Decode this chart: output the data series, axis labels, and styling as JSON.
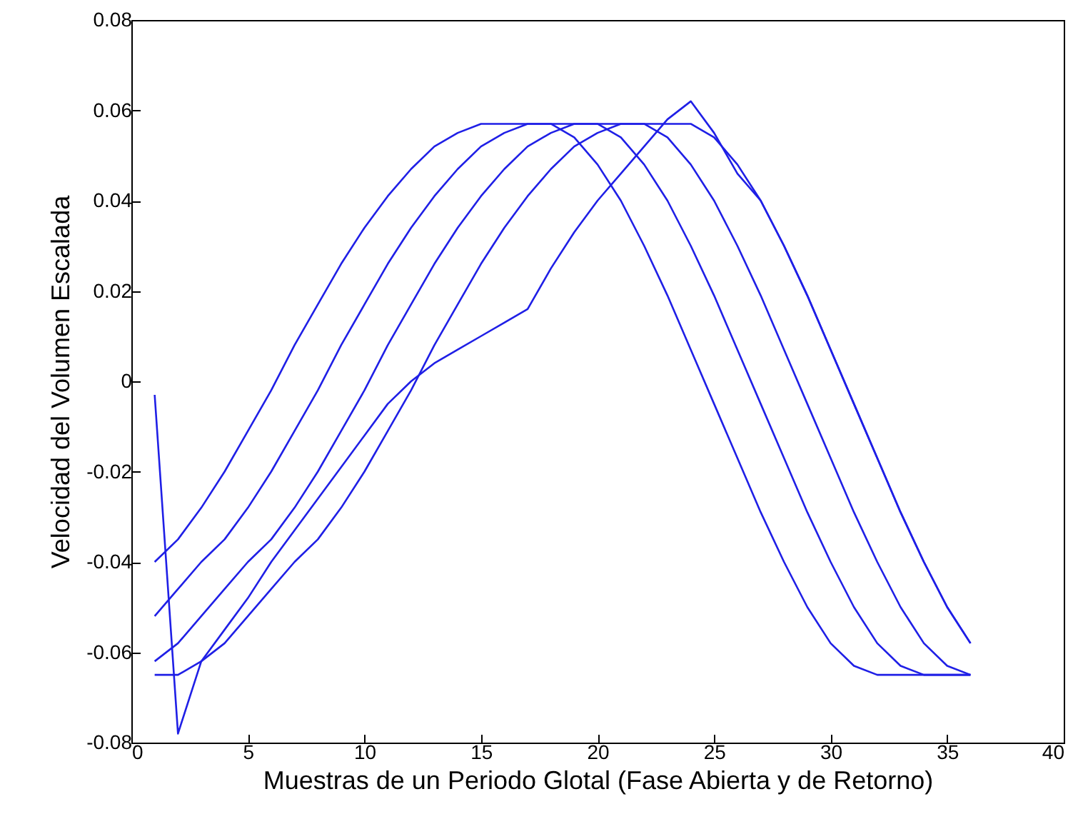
{
  "chart_data": {
    "type": "line",
    "xlabel": "Muestras de un Periodo Glotal (Fase Abierta y de Retorno)",
    "ylabel": "Velocidad del Volumen Escalada",
    "x": [
      1,
      2,
      3,
      4,
      5,
      6,
      7,
      8,
      9,
      10,
      11,
      12,
      13,
      14,
      15,
      16,
      17,
      18,
      19,
      20,
      21,
      22,
      23,
      24,
      25,
      26,
      27,
      28,
      29,
      30,
      31,
      32,
      33,
      34,
      35,
      36
    ],
    "series": [
      {
        "color": "#1f1fe6",
        "values": [
          -0.04,
          -0.035,
          -0.028,
          -0.02,
          -0.011,
          -0.002,
          0.008,
          0.017,
          0.026,
          0.034,
          0.041,
          0.047,
          0.052,
          0.055,
          0.057,
          0.057,
          0.057,
          0.057,
          0.054,
          0.048,
          0.04,
          0.03,
          0.019,
          0.007,
          -0.005,
          -0.017,
          -0.029,
          -0.04,
          -0.05,
          -0.058,
          -0.063,
          -0.065,
          -0.065,
          -0.065,
          -0.065,
          -0.065
        ]
      },
      {
        "color": "#1f1fe6",
        "values": [
          -0.052,
          -0.046,
          -0.04,
          -0.035,
          -0.028,
          -0.02,
          -0.011,
          -0.002,
          0.008,
          0.017,
          0.026,
          0.034,
          0.041,
          0.047,
          0.052,
          0.055,
          0.057,
          0.057,
          0.057,
          0.057,
          0.054,
          0.048,
          0.04,
          0.03,
          0.019,
          0.007,
          -0.005,
          -0.017,
          -0.029,
          -0.04,
          -0.05,
          -0.058,
          -0.063,
          -0.065,
          -0.065,
          -0.065
        ]
      },
      {
        "color": "#1f1fe6",
        "values": [
          -0.062,
          -0.058,
          -0.052,
          -0.046,
          -0.04,
          -0.035,
          -0.028,
          -0.02,
          -0.011,
          -0.002,
          0.008,
          0.017,
          0.026,
          0.034,
          0.041,
          0.047,
          0.052,
          0.055,
          0.057,
          0.057,
          0.057,
          0.057,
          0.054,
          0.048,
          0.04,
          0.03,
          0.019,
          0.007,
          -0.005,
          -0.017,
          -0.029,
          -0.04,
          -0.05,
          -0.058,
          -0.063,
          -0.065
        ]
      },
      {
        "color": "#1f1fe6",
        "values": [
          -0.065,
          -0.065,
          -0.062,
          -0.058,
          -0.052,
          -0.046,
          -0.04,
          -0.035,
          -0.028,
          -0.02,
          -0.011,
          -0.002,
          0.008,
          0.017,
          0.026,
          0.034,
          0.041,
          0.047,
          0.052,
          0.055,
          0.057,
          0.057,
          0.057,
          0.057,
          0.054,
          0.048,
          0.04,
          0.03,
          0.019,
          0.007,
          -0.005,
          -0.017,
          -0.029,
          -0.04,
          -0.05,
          -0.058
        ]
      },
      {
        "color": "#1f1fe6",
        "values": [
          -0.003,
          -0.078,
          -0.062,
          -0.055,
          -0.048,
          -0.04,
          -0.033,
          -0.026,
          -0.019,
          -0.012,
          -0.005,
          0.0,
          0.004,
          0.007,
          0.01,
          0.013,
          0.016,
          0.025,
          0.033,
          0.04,
          0.046,
          0.052,
          0.058,
          0.062,
          0.055,
          0.046,
          0.04,
          0.03,
          0.019,
          0.007,
          -0.005,
          -0.017,
          -0.029,
          -0.04,
          -0.05,
          -0.058
        ]
      }
    ],
    "xlim": [
      0,
      40
    ],
    "xticks": [
      0,
      5,
      10,
      15,
      20,
      25,
      30,
      35,
      40
    ],
    "ylim": [
      -0.08,
      0.08
    ],
    "yticks": [
      -0.08,
      -0.06,
      -0.04,
      -0.02,
      0,
      0.02,
      0.04,
      0.06,
      0.08
    ]
  }
}
